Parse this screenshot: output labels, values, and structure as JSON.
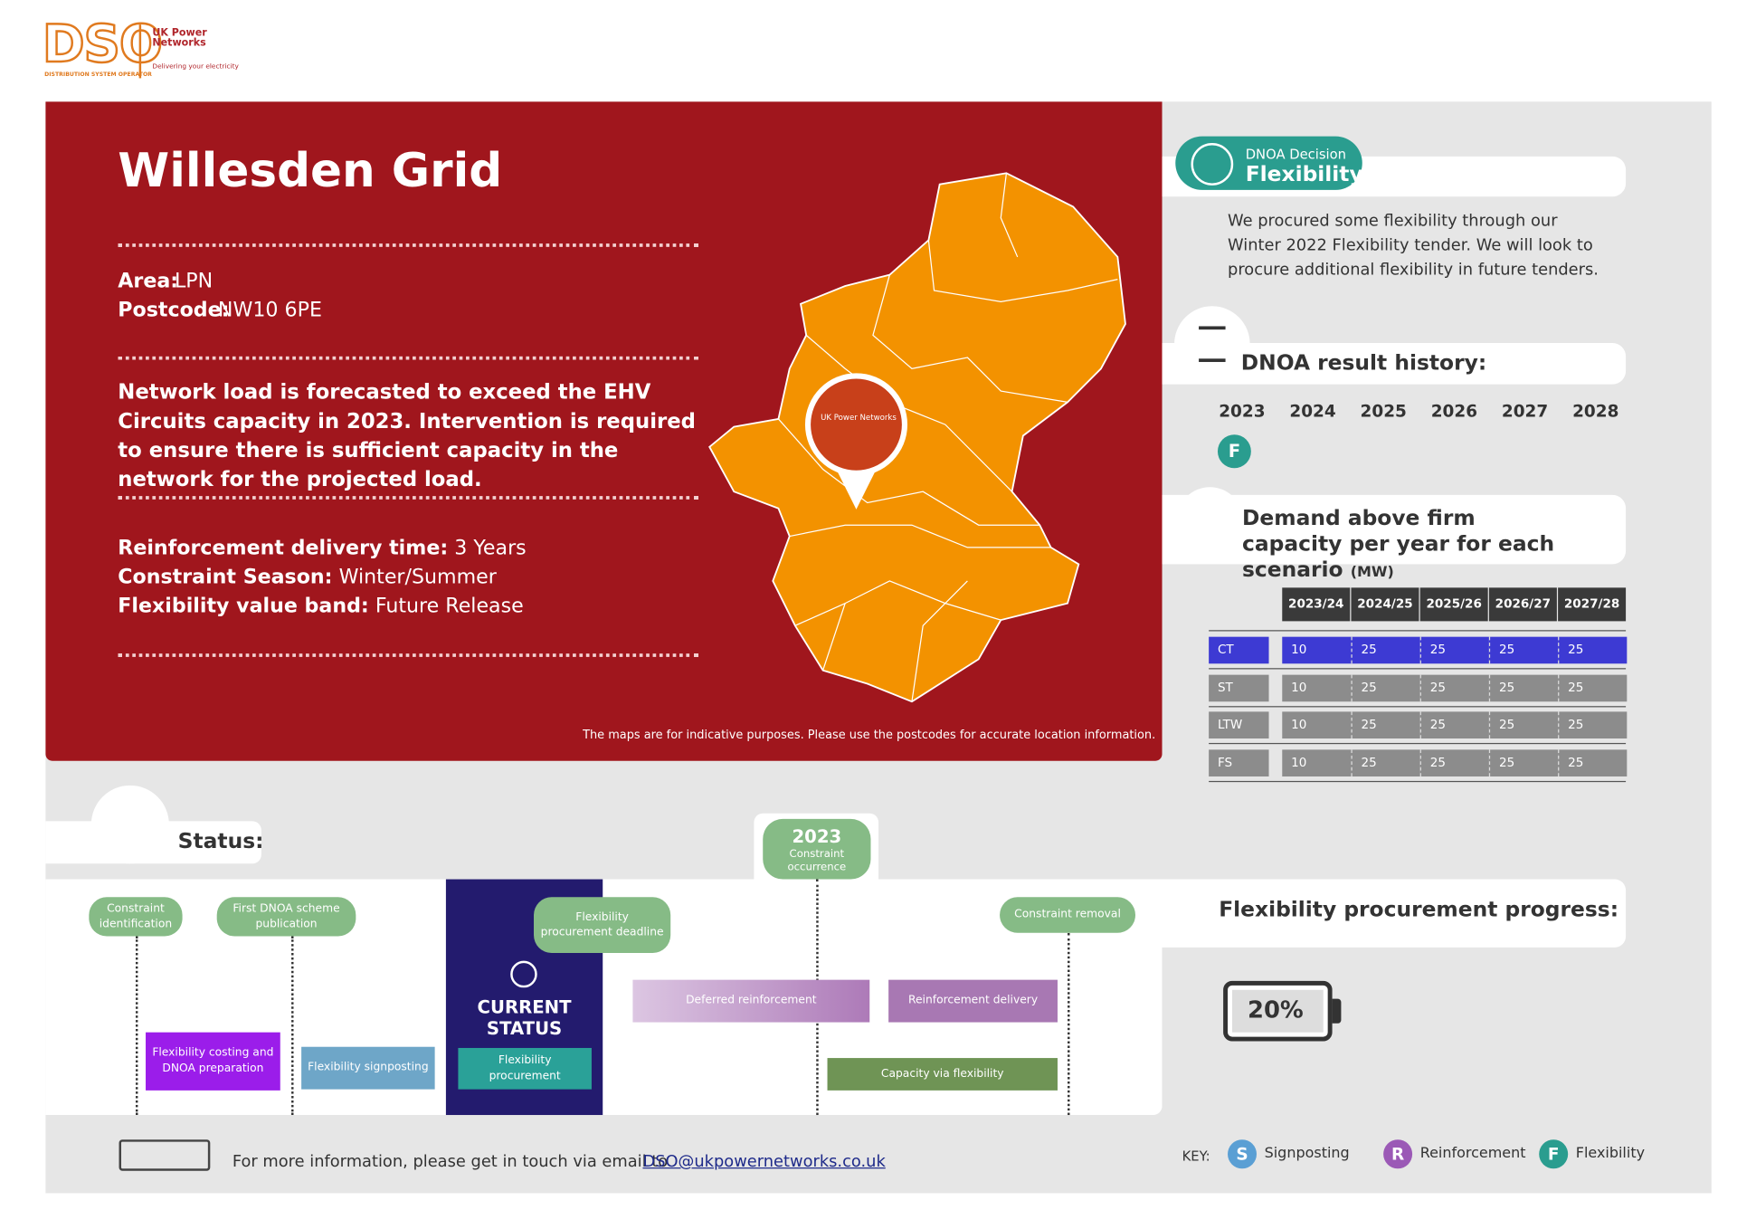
{
  "header": {
    "logo": "DSO",
    "logo_sub": "DISTRIBUTION SYSTEM OPERATOR",
    "brand": "UK Power Networks",
    "tagline": "Delivering your electricity"
  },
  "site": {
    "title": "Willesden Grid",
    "area_label": "Area:",
    "area": "LPN",
    "postcode_label": "Postcode:",
    "postcode": "NW10 6PE",
    "summary": "Network load is forecasted to exceed the EHV Circuits capacity in 2023. Intervention is required to ensure there is sufficient capacity in the network for the projected load.",
    "details": [
      {
        "label": "Reinforcement delivery time:",
        "value": "3 Years"
      },
      {
        "label": "Constraint Season:",
        "value": "Winter/Summer"
      },
      {
        "label": "Flexibility value band:",
        "value": "Future Release"
      }
    ],
    "map_note": "The maps are for indicative purposes. Please use the postcodes for accurate location information."
  },
  "decision": {
    "label": "DNOA Decision",
    "value": "Flexibility",
    "text": "We procured some flexibility through our Winter 2022 Flexibility tender. We will look to procure additional flexibility in future tenders."
  },
  "history": {
    "title": "DNOA result history:",
    "years": [
      "2023",
      "2024",
      "2025",
      "2026",
      "2027",
      "2028"
    ],
    "results": [
      "F"
    ]
  },
  "demand": {
    "title": "Demand above firm capacity per year for each scenario",
    "unit": "(MW)",
    "columns": [
      "2023/24",
      "2024/25",
      "2025/26",
      "2026/27",
      "2027/28"
    ],
    "rows": [
      {
        "name": "CT",
        "values": [
          10,
          25,
          25,
          25,
          25
        ]
      },
      {
        "name": "ST",
        "values": [
          10,
          25,
          25,
          25,
          25
        ]
      },
      {
        "name": "LTW",
        "values": [
          10,
          25,
          25,
          25,
          25
        ]
      },
      {
        "name": "FS",
        "values": [
          10,
          25,
          25,
          25,
          25
        ]
      }
    ]
  },
  "status": {
    "title": "Status:",
    "milestones": [
      "Constraint identification",
      "First DNOA scheme publication",
      "Flexibility procurement deadline",
      "Constraint removal"
    ],
    "year": "2023",
    "year_note": "Constraint occurrence",
    "current": "CURRENT STATUS",
    "bars": [
      "Flexibility costing and DNOA preparation",
      "Flexibility signposting",
      "Flexibility procurement",
      "Deferred reinforcement",
      "Reinforcement delivery",
      "Capacity via flexibility"
    ]
  },
  "progress": {
    "title": "Flexibility procurement progress:",
    "value": "20%"
  },
  "footer": {
    "text": "For more information, please get in touch via email to",
    "email": "DSO@ukpowernetworks.co.uk",
    "key_label": "KEY:",
    "key": [
      {
        "letter": "S",
        "name": "Signposting"
      },
      {
        "letter": "R",
        "name": "Reinforcement"
      },
      {
        "letter": "F",
        "name": "Flexibility"
      }
    ]
  }
}
